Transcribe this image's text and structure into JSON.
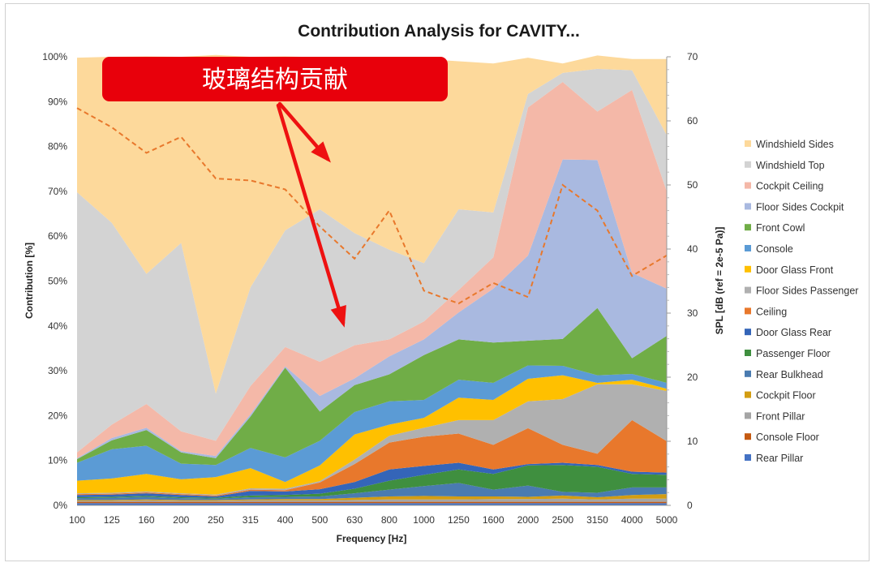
{
  "chart_data": {
    "type": "area",
    "stacked": true,
    "title": "Contribution Analysis for CAVITY...",
    "xlabel": "Frequency [Hz]",
    "ylabel": "Contribution [%]",
    "y2label": "SPL [dB (ref = 2e-5 Pa)]",
    "ylim": [
      0,
      100
    ],
    "y2lim": [
      0,
      70
    ],
    "categories": [
      "100",
      "125",
      "160",
      "200",
      "250",
      "315",
      "400",
      "500",
      "630",
      "800",
      "1000",
      "1250",
      "1600",
      "2000",
      "2500",
      "3150",
      "4000",
      "5000"
    ],
    "y_ticks": [
      "0%",
      "10%",
      "20%",
      "30%",
      "40%",
      "50%",
      "60%",
      "70%",
      "80%",
      "90%",
      "100%"
    ],
    "y2_ticks": [
      "0",
      "10",
      "20",
      "30",
      "40",
      "50",
      "60",
      "70"
    ],
    "legend_position": "right",
    "series": [
      {
        "name": "Rear Pillar",
        "color": "#4472c4",
        "values": [
          0.5,
          0.5,
          0.5,
          0.5,
          0.5,
          0.5,
          0.5,
          0.5,
          0.5,
          0.5,
          0.5,
          0.5,
          0.5,
          0.5,
          0.5,
          0.5,
          0.5,
          0.5
        ]
      },
      {
        "name": "Console Floor",
        "color": "#c55a11",
        "values": [
          0.3,
          0.3,
          0.3,
          0.3,
          0.3,
          0.3,
          0.3,
          0.3,
          0.3,
          0.3,
          0.3,
          0.3,
          0.3,
          0.3,
          0.3,
          0.3,
          0.3,
          0.3
        ]
      },
      {
        "name": "Front Pillar",
        "color": "#a5a5a5",
        "values": [
          0.2,
          0.2,
          0.3,
          0.2,
          0.2,
          0.3,
          0.3,
          0.3,
          0.4,
          0.5,
          0.5,
          0.5,
          0.6,
          0.6,
          0.7,
          0.5,
          0.7,
          0.7
        ]
      },
      {
        "name": "Cockpit Floor",
        "color": "#d39d12",
        "values": [
          0.2,
          0.2,
          0.2,
          0.2,
          0.2,
          0.2,
          0.3,
          0.3,
          0.5,
          0.7,
          0.8,
          0.7,
          0.6,
          0.5,
          0.7,
          0.5,
          0.8,
          1.0
        ]
      },
      {
        "name": "Rear Bulkhead",
        "color": "#4a7bb0",
        "values": [
          0.4,
          0.5,
          0.6,
          0.4,
          0.3,
          0.5,
          0.5,
          0.6,
          1.0,
          1.5,
          2.2,
          3.0,
          1.5,
          2.5,
          0.8,
          1.0,
          1.7,
          1.5
        ]
      },
      {
        "name": "Passenger Floor",
        "color": "#3f8f3f",
        "values": [
          0.2,
          0.2,
          0.2,
          0.2,
          0.2,
          0.4,
          0.4,
          0.6,
          1.0,
          2.0,
          2.5,
          3.0,
          3.5,
          4.5,
          6.0,
          5.8,
          3.0,
          2.8
        ]
      },
      {
        "name": "Door Glass Rear",
        "color": "#3465b8",
        "values": [
          0.5,
          0.5,
          0.6,
          0.5,
          0.3,
          1.0,
          0.8,
          1.0,
          1.5,
          2.5,
          2.0,
          1.5,
          1.0,
          0.3,
          0.5,
          0.4,
          0.5,
          0.5
        ]
      },
      {
        "name": "Ceiling",
        "color": "#e8782c",
        "values": [
          0.2,
          0.2,
          0.2,
          0.2,
          0.2,
          0.3,
          0.3,
          1.5,
          4.0,
          6.0,
          6.5,
          6.5,
          5.5,
          8.0,
          4.0,
          2.5,
          11.5,
          7.0
        ]
      },
      {
        "name": "Floor Sides Passenger",
        "color": "#b0b0b0",
        "values": [
          0.2,
          0.2,
          0.2,
          0.2,
          0.2,
          0.3,
          0.3,
          0.3,
          1.0,
          1.5,
          2.0,
          3.0,
          5.5,
          6.0,
          10.2,
          15.5,
          8.0,
          11.2
        ]
      },
      {
        "name": "Door Glass Front",
        "color": "#ffc000",
        "values": [
          2.8,
          3.2,
          3.9,
          3.1,
          3.9,
          4.5,
          1.5,
          3.5,
          5.6,
          2.5,
          2.2,
          5.0,
          4.5,
          5.0,
          5.3,
          0.3,
          1.0,
          0.5
        ]
      },
      {
        "name": "Console",
        "color": "#5b9bd5",
        "values": [
          4.0,
          6.5,
          6.3,
          3.5,
          2.7,
          4.5,
          5.5,
          5.5,
          5.0,
          5.2,
          4.0,
          4.0,
          3.8,
          3.0,
          2.1,
          1.7,
          1.3,
          1.3
        ]
      },
      {
        "name": "Front Cowl",
        "color": "#70ad47",
        "values": [
          0.8,
          2.0,
          3.5,
          2.5,
          1.5,
          7.0,
          20.0,
          6.5,
          6.0,
          6.0,
          10.0,
          9.0,
          9.0,
          5.5,
          6.0,
          15.0,
          3.5,
          10.5
        ]
      },
      {
        "name": "Floor Sides Cockpit",
        "color": "#a9b9e0",
        "values": [
          0.2,
          0.5,
          0.5,
          0.3,
          0.5,
          0.5,
          0.3,
          3.5,
          1.5,
          4.0,
          3.5,
          6.0,
          12.0,
          19.0,
          40.0,
          33.0,
          19.0,
          10.5
        ]
      },
      {
        "name": "Cockpit Ceiling",
        "color": "#f4b8a8",
        "values": [
          1.3,
          3.0,
          5.3,
          4.4,
          3.4,
          6.3,
          4.3,
          7.6,
          7.4,
          3.8,
          4.0,
          5.0,
          7.0,
          33.0,
          17.3,
          10.8,
          40.8,
          21.7
        ]
      },
      {
        "name": "Windshield Top",
        "color": "#d3d3d3",
        "values": [
          58.0,
          45.0,
          29.0,
          42.0,
          10.5,
          22.0,
          26.0,
          34.0,
          25.0,
          20.0,
          13.0,
          18.0,
          10.0,
          3.0,
          2.0,
          9.5,
          4.4,
          12.5
        ]
      },
      {
        "name": "Windshield Sides",
        "color": "#fdd99b",
        "values": [
          30.0,
          37.0,
          48.5,
          41.5,
          75.5,
          51.4,
          38.8,
          33.9,
          38.8,
          43.0,
          45.5,
          33.0,
          33.2,
          8.1,
          2.1,
          3.0,
          2.5,
          17.0
        ]
      }
    ],
    "spl_line": {
      "color": "#e8782c",
      "style": "dashed",
      "values": [
        62,
        59,
        55,
        57.5,
        51,
        50.7,
        49.3,
        43.5,
        38.5,
        46,
        33.5,
        31.5,
        34.7,
        32.5,
        50,
        46,
        35.8,
        39
      ]
    }
  },
  "annotation": {
    "text": "玻璃结构贡献",
    "box_color": "#e8000b",
    "arrow_color": "#ee1111"
  }
}
